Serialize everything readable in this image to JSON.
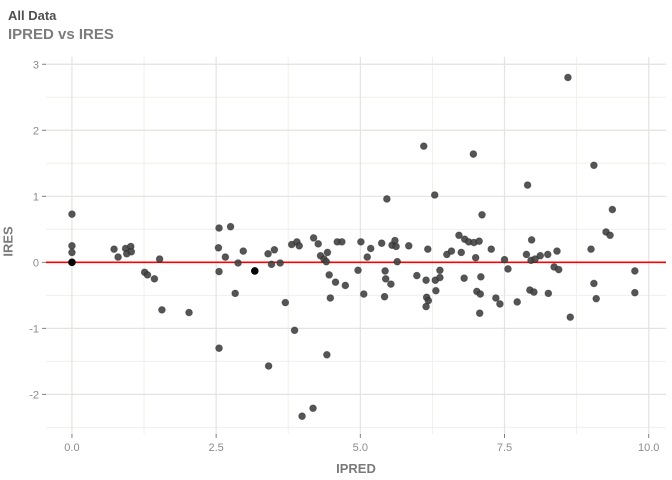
{
  "header": {
    "line1": "All Data",
    "line2": "IPRED vs IRES"
  },
  "chart_data": {
    "type": "scatter",
    "title": "All Data",
    "subtitle": "IPRED vs IRES",
    "xlabel": "IPRED",
    "ylabel": "IRES",
    "xlim": [
      -0.45,
      10.3
    ],
    "ylim": [
      -2.6,
      3.11
    ],
    "x_ticks": [
      0,
      2.5,
      5,
      7.5,
      10
    ],
    "x_tick_labels": [
      "0.0",
      "2.5",
      "5.0",
      "7.5",
      "10.0"
    ],
    "x_minor_ticks": [
      1.25,
      3.75,
      6.25,
      8.75
    ],
    "y_ticks": [
      3,
      2,
      1,
      0,
      -1,
      -2
    ],
    "y_tick_labels": [
      "3",
      "2",
      "1",
      "0",
      "-1",
      "-2"
    ],
    "y_minor_ticks": [
      2.5,
      1.5,
      0.5,
      -0.5,
      -1.5,
      -2.5
    ],
    "grid": true,
    "legend_position": "none",
    "reference_line": {
      "y": 0,
      "color": "#FF0000"
    },
    "colors": {
      "point": "#424242",
      "point_stroke": "#1E1E1E",
      "dark_point": "#050505",
      "grid_major": "#E3E3DF",
      "grid_minor": "#EFEFEC",
      "tick": "#808080",
      "tick_label": "#8C8C8C",
      "axis_title": "#7A7A7A",
      "title1": "#4F4F4F",
      "title2": "#7C7C7C",
      "background": "#FFFFFF"
    },
    "points": [
      [
        0.0,
        0.73
      ],
      [
        0.0,
        0.25
      ],
      [
        0.0,
        0.15
      ],
      [
        0.73,
        0.2
      ],
      [
        0.8,
        0.08
      ],
      [
        0.93,
        0.21
      ],
      [
        1.02,
        0.24
      ],
      [
        0.95,
        0.13
      ],
      [
        1.03,
        0.16
      ],
      [
        1.26,
        -0.15
      ],
      [
        1.31,
        -0.19
      ],
      [
        1.43,
        -0.25
      ],
      [
        1.52,
        0.05
      ],
      [
        1.56,
        -0.72
      ],
      [
        2.03,
        -0.76
      ],
      [
        2.55,
        0.52
      ],
      [
        2.75,
        0.54
      ],
      [
        2.54,
        0.22
      ],
      [
        2.55,
        -0.14
      ],
      [
        2.55,
        -1.3
      ],
      [
        2.66,
        0.08
      ],
      [
        2.83,
        -0.47
      ],
      [
        2.88,
        -0.01
      ],
      [
        2.97,
        0.17
      ],
      [
        3.4,
        0.13
      ],
      [
        3.46,
        -0.03
      ],
      [
        3.41,
        -1.57
      ],
      [
        3.51,
        0.19
      ],
      [
        3.61,
        -0.01
      ],
      [
        3.7,
        -0.61
      ],
      [
        3.81,
        0.27
      ],
      [
        3.9,
        0.31
      ],
      [
        3.94,
        0.25
      ],
      [
        3.86,
        -1.03
      ],
      [
        3.99,
        -2.33
      ],
      [
        4.19,
        0.37
      ],
      [
        4.27,
        0.28
      ],
      [
        4.31,
        0.1
      ],
      [
        4.37,
        0.05
      ],
      [
        4.43,
        0.15
      ],
      [
        4.41,
        0.01
      ],
      [
        4.46,
        -0.19
      ],
      [
        4.57,
        -0.3
      ],
      [
        4.74,
        -0.35
      ],
      [
        4.48,
        -0.54
      ],
      [
        4.18,
        -2.21
      ],
      [
        4.42,
        -1.4
      ],
      [
        4.6,
        0.31
      ],
      [
        4.68,
        0.31
      ],
      [
        5.01,
        0.31
      ],
      [
        5.12,
        0.08
      ],
      [
        5.18,
        0.21
      ],
      [
        4.96,
        -0.12
      ],
      [
        5.06,
        -0.48
      ],
      [
        5.37,
        0.29
      ],
      [
        5.43,
        -0.13
      ],
      [
        5.42,
        -0.52
      ],
      [
        5.44,
        -0.25
      ],
      [
        5.53,
        -0.33
      ],
      [
        5.46,
        0.96
      ],
      [
        5.55,
        0.26
      ],
      [
        5.6,
        0.33
      ],
      [
        5.62,
        0.24
      ],
      [
        5.64,
        0.01
      ],
      [
        5.84,
        0.25
      ],
      [
        5.98,
        -0.2
      ],
      [
        6.1,
        1.76
      ],
      [
        6.17,
        0.2
      ],
      [
        6.14,
        -0.27
      ],
      [
        6.15,
        -0.53
      ],
      [
        6.18,
        -0.58
      ],
      [
        6.14,
        -0.67
      ],
      [
        6.29,
        1.02
      ],
      [
        6.31,
        -0.43
      ],
      [
        6.3,
        -0.27
      ],
      [
        6.38,
        -0.23
      ],
      [
        6.38,
        -0.12
      ],
      [
        6.5,
        0.12
      ],
      [
        6.58,
        0.17
      ],
      [
        6.71,
        0.41
      ],
      [
        6.81,
        0.35
      ],
      [
        6.88,
        0.31
      ],
      [
        6.97,
        0.3
      ],
      [
        7.06,
        0.32
      ],
      [
        6.75,
        0.15
      ],
      [
        7.0,
        0.07
      ],
      [
        6.96,
        1.64
      ],
      [
        6.8,
        -0.24
      ],
      [
        7.09,
        -0.22
      ],
      [
        7.02,
        -0.44
      ],
      [
        7.08,
        -0.48
      ],
      [
        7.07,
        -0.77
      ],
      [
        7.11,
        0.72
      ],
      [
        7.27,
        0.2
      ],
      [
        7.35,
        -0.54
      ],
      [
        7.42,
        -0.63
      ],
      [
        7.5,
        0.04
      ],
      [
        7.56,
        -0.1
      ],
      [
        7.72,
        -0.6
      ],
      [
        7.9,
        1.17
      ],
      [
        7.97,
        0.34
      ],
      [
        7.88,
        0.12
      ],
      [
        7.96,
        0.03
      ],
      [
        8.03,
        0.05
      ],
      [
        7.94,
        -0.42
      ],
      [
        8.01,
        -0.45
      ],
      [
        8.12,
        0.1
      ],
      [
        8.25,
        0.12
      ],
      [
        8.41,
        0.17
      ],
      [
        8.36,
        -0.07
      ],
      [
        8.44,
        -0.11
      ],
      [
        8.26,
        -0.47
      ],
      [
        8.6,
        2.8
      ],
      [
        8.64,
        -0.83
      ],
      [
        9.0,
        0.2
      ],
      [
        9.05,
        1.47
      ],
      [
        9.26,
        0.46
      ],
      [
        9.33,
        0.41
      ],
      [
        9.37,
        0.8
      ],
      [
        9.05,
        -0.32
      ],
      [
        9.09,
        -0.55
      ],
      [
        9.76,
        -0.13
      ],
      [
        9.76,
        -0.46
      ]
    ],
    "dark_points": [
      [
        0.0,
        0.0
      ],
      [
        3.17,
        -0.13
      ]
    ]
  }
}
